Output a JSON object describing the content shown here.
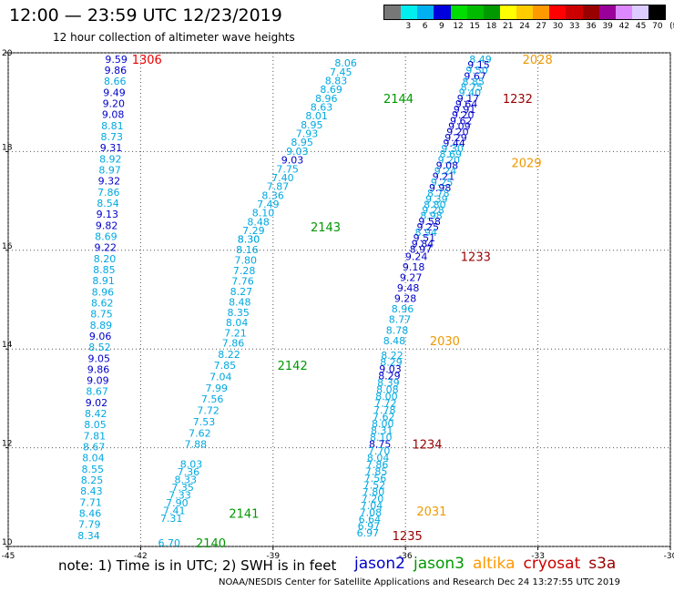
{
  "header": {
    "title": "12:00 — 23:59 UTC 12/23/2019",
    "subtitle": "12 hour collection of altimeter wave heights"
  },
  "legend": {
    "colors": [
      "#777777",
      "#00eeee",
      "#00b0f0",
      "#0000dd",
      "#00dd00",
      "#00bb00",
      "#009900",
      "#ffff00",
      "#ffcc00",
      "#ff9900",
      "#ff0000",
      "#cc0000",
      "#990000",
      "#990099",
      "#dd88ff",
      "#ddccff",
      "#000000"
    ],
    "labels": [
      "3",
      "6",
      "9",
      "12",
      "15",
      "18",
      "21",
      "24",
      "27",
      "30",
      "33",
      "36",
      "39",
      "42",
      "45",
      "70",
      "(ft)"
    ],
    "label_positions": [
      1.5,
      2.5,
      3.5,
      4.5,
      5.5,
      6.5,
      7.5,
      8.5,
      9.5,
      10.5,
      11.5,
      12.5,
      13.5,
      14.5,
      15.5,
      16.5,
      17.6
    ]
  },
  "footer": {
    "note": "note: 1) Time is in UTC; 2) SWH is in feet",
    "credit": "NOAA/NESDIS Center for Satellite Applications and Research     Dec 24 13:27:55 UTC 2019",
    "satellites": [
      {
        "name": "jason2",
        "color": "#0000cc"
      },
      {
        "name": "jason3",
        "color": "#009900"
      },
      {
        "name": "altika",
        "color": "#ff9900"
      },
      {
        "name": "cryosat",
        "color": "#cc0000"
      },
      {
        "name": "s3a",
        "color": "#990000"
      }
    ]
  },
  "chart_data": {
    "type": "scatter",
    "title": "12 hour collection of altimeter wave heights",
    "x_axis": {
      "min": -45,
      "max": -30,
      "ticks": [
        -45,
        -42,
        -39,
        -36,
        -33,
        -30
      ],
      "tick_labels": [
        "-45",
        "-42",
        "-39",
        "-36",
        "-33",
        "-30"
      ]
    },
    "y_axis": {
      "min": 10,
      "max": 20,
      "ticks": [
        10,
        12,
        14,
        16,
        18,
        20
      ],
      "tick_labels": [
        "10",
        "12",
        "14",
        "16",
        "18",
        "20"
      ]
    },
    "grid": true,
    "colors": {
      "cyan": "#00a8e0",
      "blue": "#0000cc"
    },
    "tracks": [
      {
        "pass_label": "1306",
        "label_lon": -42.2,
        "label_lat": 19.8,
        "label_color": "#ee0000",
        "start": [
          -42.3,
          19.8
        ],
        "end": [
          -42.92,
          10.15
        ],
        "values": [
          9.59,
          9.86,
          8.66,
          9.49,
          9.2,
          9.08,
          8.81,
          8.73,
          9.31,
          8.92,
          8.97,
          9.32,
          7.86,
          8.54,
          9.13,
          9.82,
          8.69,
          9.22,
          8.2,
          8.85,
          8.91,
          8.96,
          8.62,
          8.75,
          8.89,
          9.06,
          8.52,
          9.05,
          9.86,
          9.09,
          8.67,
          9.02,
          8.42,
          8.05,
          7.81,
          8.67,
          8.04,
          8.55,
          8.25,
          8.43,
          7.71,
          8.46,
          7.79,
          8.34
        ],
        "colors": [
          "b",
          "b",
          "c",
          "b",
          "b",
          "b",
          "c",
          "c",
          "b",
          "c",
          "c",
          "b",
          "c",
          "c",
          "b",
          "b",
          "c",
          "b",
          "c",
          "c",
          "c",
          "c",
          "c",
          "c",
          "c",
          "b",
          "c",
          "b",
          "b",
          "b",
          "c",
          "b",
          "c",
          "c",
          "c",
          "c",
          "c",
          "c",
          "c",
          "c",
          "c",
          "c",
          "c",
          "c"
        ]
      },
      {
        "pass_label": "2144",
        "label_lon": -36.5,
        "label_lat": 19.0,
        "label_color": "#009900",
        "start": [
          -37.1,
          19.72
        ],
        "end": [
          -39.3,
          16.15
        ],
        "values": [
          8.06,
          7.45,
          8.83,
          8.69,
          8.96,
          8.63,
          8.01,
          8.95,
          7.93,
          8.95,
          9.03,
          9.03,
          7.75,
          7.4,
          7.87,
          8.36,
          7.49,
          8.1,
          8.48,
          7.29,
          8.3
        ],
        "colors": [
          "c",
          "c",
          "c",
          "c",
          "c",
          "c",
          "c",
          "c",
          "c",
          "c",
          "c",
          "b",
          "c",
          "c",
          "c",
          "c",
          "c",
          "c",
          "c",
          "c",
          "c"
        ]
      },
      {
        "pass_label": "2143",
        "label_lon": -38.15,
        "label_lat": 16.4,
        "label_color": "#009900",
        "start": [
          -39.3,
          16.15
        ],
        "end": [
          -39.6,
          14.25
        ],
        "values": [
          8.3,
          8.16,
          7.8,
          7.28,
          7.76,
          8.27,
          8.48,
          8.35,
          8.04,
          7.21
        ],
        "colors": [
          "c",
          "c",
          "c",
          "c",
          "c",
          "c",
          "c",
          "c",
          "c",
          "c"
        ]
      },
      {
        "pass_label": "2142",
        "label_lon": -38.9,
        "label_lat": 13.6,
        "label_color": "#009900",
        "start": [
          -39.65,
          14.05
        ],
        "end": [
          -40.5,
          12.0
        ],
        "values": [
          7.86,
          8.22,
          7.85,
          7.04,
          7.99,
          7.56,
          7.72,
          7.53,
          7.62,
          7.88
        ],
        "colors": [
          "c",
          "c",
          "c",
          "c",
          "c",
          "c",
          "c",
          "c",
          "c",
          "c"
        ]
      },
      {
        "pass_label": "2141",
        "label_lon": -40.0,
        "label_lat": 10.6,
        "label_color": "#009900",
        "start": [
          -40.6,
          11.6
        ],
        "end": [
          -41.05,
          10.5
        ],
        "values": [
          8.03,
          7.36,
          8.33,
          7.35,
          7.33,
          7.9,
          7.41,
          7.31
        ],
        "colors": [
          "c",
          "c",
          "c",
          "c",
          "c",
          "c",
          "c",
          "c"
        ]
      },
      {
        "pass_label": "2140",
        "label_lon": -40.75,
        "label_lat": 10.0,
        "label_color": "#009900",
        "start": [
          -41.1,
          10.0
        ],
        "end": [
          -41.1,
          10.0
        ],
        "values": [
          6.7
        ],
        "colors": [
          "c"
        ]
      },
      {
        "pass_label": "2028",
        "label_lon": -33.35,
        "label_lat": 19.8,
        "label_color": "#ee9900",
        "start": [
          -34.05,
          19.8
        ],
        "end": [
          -35.4,
          15.95
        ],
        "values": [
          8.49,
          9.15,
          9.5,
          9.67,
          8.85,
          8.75,
          9.4,
          9.17,
          9.64,
          9.91,
          9.2,
          9.62,
          9.09,
          9.2,
          9.29,
          9.44,
          9.3,
          8.69,
          9.2,
          9.08,
          9.24,
          9.21,
          9.25,
          9.98,
          8.78,
          9.39,
          8.8,
          9.28,
          8.98,
          9.58,
          9.25,
          8.94,
          9.51,
          9.84,
          8.97
        ],
        "colors": [
          "c",
          "b",
          "c",
          "b",
          "c",
          "c",
          "c",
          "b",
          "b",
          "b",
          "b",
          "b",
          "b",
          "b",
          "b",
          "b",
          "c",
          "c",
          "c",
          "b",
          "c",
          "b",
          "c",
          "b",
          "c",
          "c",
          "c",
          "c",
          "c",
          "b",
          "b",
          "c",
          "b",
          "b",
          "b"
        ]
      },
      {
        "pass_label": "2029",
        "label_lon": -33.6,
        "label_lat": 17.7,
        "label_color": "#ee9900",
        "start": [
          -34.5,
          17.7
        ],
        "end": [
          -34.5,
          17.7
        ],
        "values": [],
        "colors": []
      },
      {
        "pass_label": "1232",
        "label_lon": -33.8,
        "label_lat": 19.0,
        "label_color": "#990000",
        "start": [
          -34.5,
          19.0
        ],
        "end": [
          -34.5,
          19.0
        ],
        "values": [],
        "colors": []
      },
      {
        "pass_label": "1233",
        "label_lon": -34.75,
        "label_lat": 15.8,
        "label_color": "#990000",
        "start": [
          -35.5,
          15.8
        ],
        "end": [
          -36.0,
          14.1
        ],
        "values": [
          9.24,
          9.18,
          9.27,
          9.48,
          9.28,
          8.96,
          8.77,
          8.78,
          8.48
        ],
        "colors": [
          "b",
          "b",
          "b",
          "b",
          "b",
          "c",
          "c",
          "c",
          "c"
        ]
      },
      {
        "pass_label": "2030",
        "label_lon": -35.45,
        "label_lat": 14.1,
        "label_color": "#ee9900",
        "start": [
          -36.05,
          13.8
        ],
        "end": [
          -36.6,
          10.2
        ],
        "values": [
          8.22,
          8.29,
          9.03,
          8.29,
          8.39,
          8.08,
          8.0,
          7.72,
          7.78,
          7.62,
          8.0,
          8.31,
          8.1,
          8.75,
          7.7,
          8.04,
          7.86,
          7.85,
          7.56,
          7.52,
          7.8,
          7.2,
          7.04,
          7.08,
          6.64,
          6.97,
          6.97
        ],
        "colors": [
          "c",
          "c",
          "b",
          "b",
          "c",
          "c",
          "c",
          "c",
          "c",
          "c",
          "c",
          "c",
          "c",
          "b",
          "c",
          "c",
          "c",
          "c",
          "c",
          "c",
          "c",
          "c",
          "c",
          "c",
          "c",
          "c",
          "c"
        ]
      },
      {
        "pass_label": "1234",
        "label_lon": -35.85,
        "label_lat": 12.0,
        "label_color": "#990000",
        "start": [
          -35.85,
          12.0
        ],
        "end": [
          -35.85,
          12.0
        ],
        "values": [],
        "colors": []
      },
      {
        "pass_label": "2031",
        "label_lon": -35.75,
        "label_lat": 10.65,
        "label_color": "#ee9900",
        "start": [
          -35.75,
          10.65
        ],
        "end": [
          -35.75,
          10.65
        ],
        "values": [],
        "colors": []
      },
      {
        "pass_label": "1235",
        "label_lon": -36.3,
        "label_lat": 10.15,
        "label_color": "#990000",
        "start": [
          -36.3,
          10.15
        ],
        "end": [
          -36.3,
          10.15
        ],
        "values": [],
        "colors": []
      }
    ]
  }
}
